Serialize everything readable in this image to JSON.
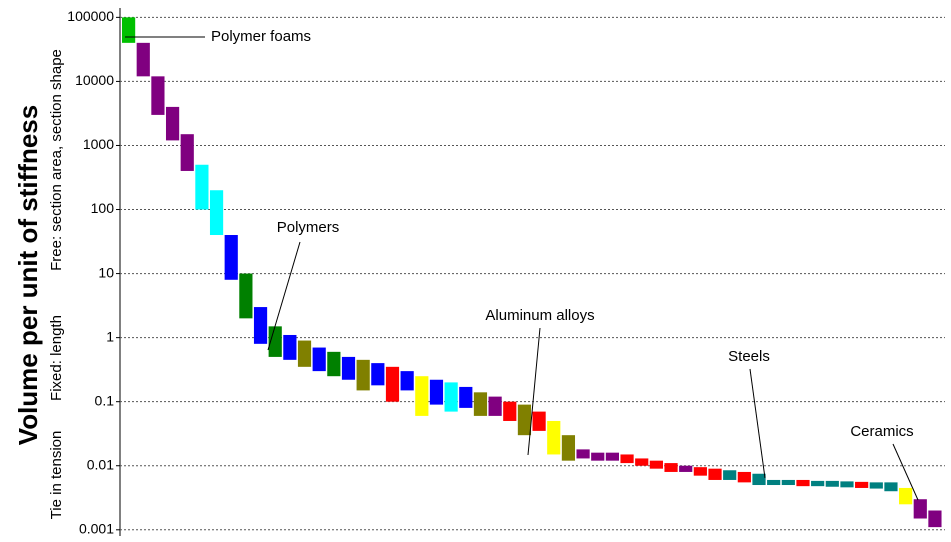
{
  "chart_data": {
    "type": "range",
    "ylabel": "Volume per unit of stiffness",
    "ylabel_notes": [
      "Tie in tension",
      "Fixed: length",
      "Free: section area, section shape"
    ],
    "log_y": true,
    "grid": true,
    "ylim": [
      0.0008,
      140000
    ],
    "yticks": [
      0.001,
      0.01,
      0.1,
      1,
      10,
      100,
      1000,
      10000,
      100000
    ],
    "low": [
      40000,
      12000,
      3000,
      1200,
      400,
      100,
      40,
      8,
      2,
      0.8,
      0.5,
      0.45,
      0.35,
      0.3,
      0.25,
      0.22,
      0.15,
      0.18,
      0.1,
      0.15,
      0.06,
      0.09,
      0.07,
      0.08,
      0.06,
      0.06,
      0.05,
      0.03,
      0.035,
      0.015,
      0.012,
      0.013,
      0.012,
      0.012,
      0.011,
      0.01,
      0.009,
      0.008,
      0.008,
      0.007,
      0.006,
      0.006,
      0.0055,
      0.005,
      0.005,
      0.005,
      0.0048,
      0.0048,
      0.0047,
      0.0046,
      0.0045,
      0.0044,
      0.004,
      0.0025,
      0.0015,
      0.0011
    ],
    "high": [
      100000,
      40000,
      12000,
      4000,
      1500,
      500,
      200,
      40,
      10,
      3,
      1.5,
      1.1,
      0.9,
      0.7,
      0.6,
      0.5,
      0.45,
      0.4,
      0.35,
      0.3,
      0.25,
      0.22,
      0.2,
      0.17,
      0.14,
      0.12,
      0.1,
      0.09,
      0.07,
      0.05,
      0.03,
      0.018,
      0.016,
      0.016,
      0.015,
      0.013,
      0.012,
      0.011,
      0.01,
      0.0095,
      0.009,
      0.0085,
      0.008,
      0.0075,
      0.006,
      0.006,
      0.006,
      0.0058,
      0.0058,
      0.0057,
      0.0056,
      0.0055,
      0.0055,
      0.0045,
      0.003,
      0.002
    ],
    "colors": [
      "#00c000",
      "#800080",
      "#800080",
      "#800080",
      "#800080",
      "#00ffff",
      "#00ffff",
      "#0000ff",
      "#008000",
      "#0000ff",
      "#008000",
      "#0000ff",
      "#808000",
      "#0000ff",
      "#008000",
      "#0000ff",
      "#808000",
      "#0000ff",
      "#ff0000",
      "#0000ff",
      "#ffff00",
      "#0000ff",
      "#00ffff",
      "#0000ff",
      "#808000",
      "#800080",
      "#ff0000",
      "#808000",
      "#ff0000",
      "#ffff00",
      "#808000",
      "#800080",
      "#800080",
      "#800080",
      "#ff0000",
      "#ff0000",
      "#ff0000",
      "#ff0000",
      "#800080",
      "#ff0000",
      "#ff0000",
      "#008080",
      "#ff0000",
      "#008080",
      "#008080",
      "#008080",
      "#ff0000",
      "#008080",
      "#008080",
      "#008080",
      "#ff0000",
      "#008080",
      "#008080",
      "#ffff00",
      "#800080",
      "#800080"
    ],
    "annotations": [
      "Polymer foams",
      "Polymers",
      "Aluminum alloys",
      "Steels",
      "Ceramics"
    ]
  }
}
